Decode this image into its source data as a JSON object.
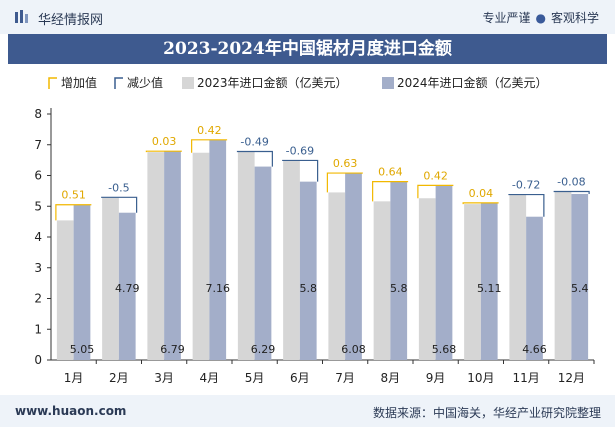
{
  "header": {
    "brand": "华经情报网",
    "slogan_left": "专业严谨",
    "slogan_right": "客观科学"
  },
  "footer": {
    "website": "www.huaon.com",
    "source": "数据来源：中国海关，华经产业研究院整理"
  },
  "colors": {
    "bar_2023": "#d6d6d6",
    "bar_2024": "#a3aec9",
    "increase": "#f2b800",
    "decrease": "#3a5f8f",
    "title_bg": "#3e5a8f"
  },
  "chart_data": {
    "type": "bar",
    "title": "2023-2024年中国锯材月度进口金额",
    "legend": [
      "增加值",
      "减少值",
      "2023年进口金额（亿美元）",
      "2024年进口金额（亿美元）"
    ],
    "categories": [
      "1月",
      "2月",
      "3月",
      "4月",
      "5月",
      "6月",
      "7月",
      "8月",
      "9月",
      "10月",
      "11月",
      "12月"
    ],
    "series": [
      {
        "name": "2023年进口金额（亿美元）",
        "values": [
          4.54,
          5.29,
          6.76,
          6.74,
          6.78,
          6.49,
          5.45,
          5.16,
          5.26,
          5.07,
          5.38,
          5.48
        ]
      },
      {
        "name": "2024年进口金额（亿美元）",
        "values": [
          5.05,
          4.79,
          6.79,
          7.16,
          6.29,
          5.8,
          6.08,
          5.8,
          5.68,
          5.11,
          4.66,
          5.4
        ]
      }
    ],
    "changes": [
      0.51,
      -0.5,
      0.03,
      0.42,
      -0.49,
      -0.69,
      0.63,
      0.64,
      0.42,
      0.04,
      -0.72,
      -0.08
    ],
    "ylim": [
      0,
      8
    ],
    "yticks": [
      0,
      1,
      2,
      3,
      4,
      5,
      6,
      7,
      8
    ],
    "grid": false,
    "legend_position": "top"
  }
}
